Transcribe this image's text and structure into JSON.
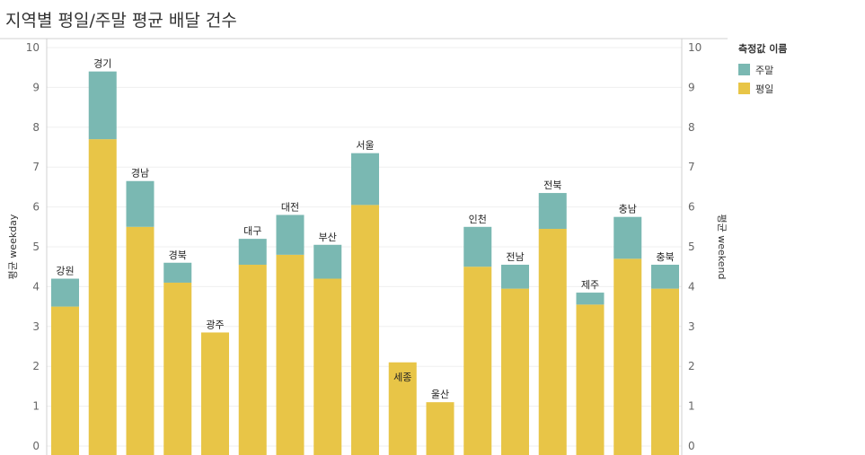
{
  "title": "지역별 평일/주말 평균 배달 건수",
  "legend": {
    "title": "측정값 이름",
    "items": [
      {
        "label": "주말",
        "color": "#7ab8b2"
      },
      {
        "label": "평일",
        "color": "#e8c547"
      }
    ]
  },
  "chart_data": {
    "type": "bar",
    "stacked": true,
    "categories": [
      "강원",
      "경기",
      "경남",
      "경북",
      "광주",
      "대구",
      "대전",
      "부산",
      "서울",
      "세종",
      "울산",
      "인천",
      "전남",
      "전북",
      "제주",
      "충남",
      "충북"
    ],
    "series": [
      {
        "name": "평일",
        "color": "#e8c547",
        "values": [
          3.5,
          7.7,
          5.5,
          4.1,
          2.85,
          4.55,
          4.8,
          4.2,
          6.05,
          2.1,
          1.1,
          4.5,
          3.95,
          5.45,
          3.55,
          4.7,
          3.95
        ]
      },
      {
        "name": "주말",
        "color": "#7ab8b2",
        "values": [
          0.7,
          1.7,
          1.15,
          0.5,
          0,
          0.65,
          1.0,
          0.85,
          1.3,
          0,
          0,
          1.0,
          0.6,
          0.9,
          0.3,
          1.05,
          0.6
        ]
      }
    ],
    "ylabel_left": "평균 weekday",
    "ylabel_right": "평균 weekend",
    "ylim": [
      0,
      10
    ],
    "yticks": [
      0,
      1,
      2,
      3,
      4,
      5,
      6,
      7,
      8,
      9,
      10
    ],
    "grid": true,
    "legend_position": "right"
  }
}
